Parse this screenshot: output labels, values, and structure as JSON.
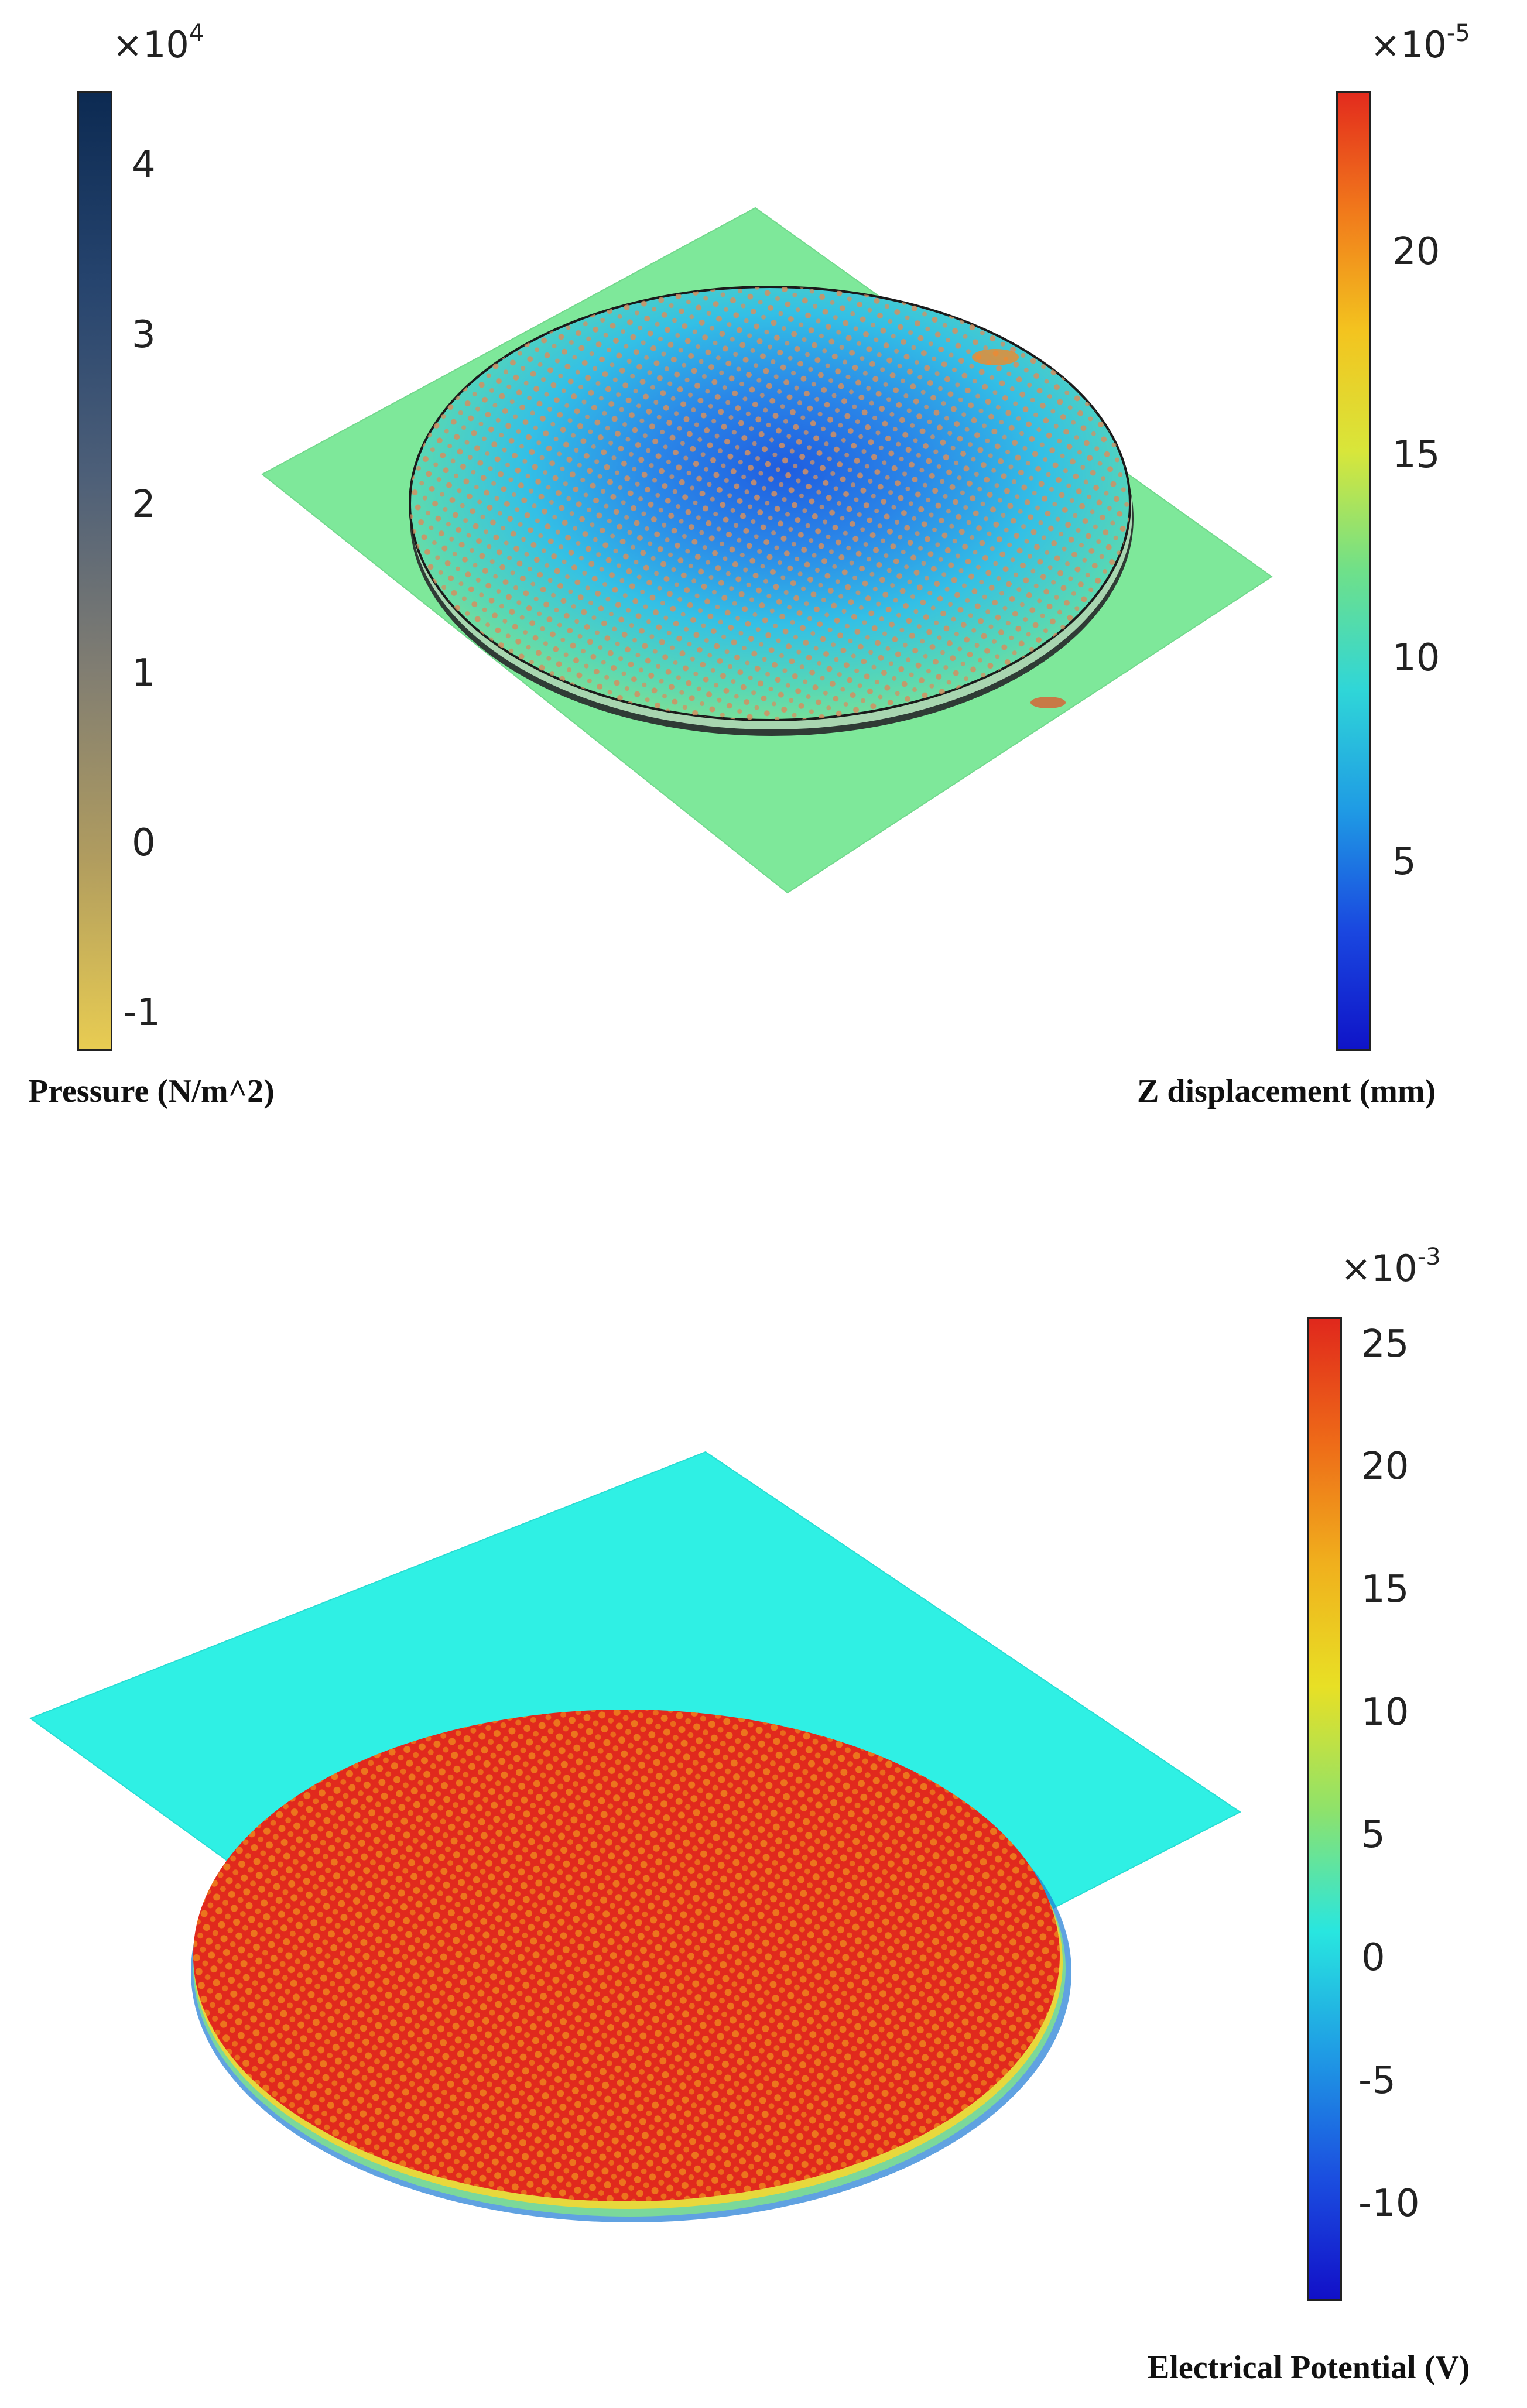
{
  "top": {
    "pressure_colorbar": {
      "multiplier_base": "×10",
      "multiplier_exp": "4",
      "ticks": [
        "4",
        "3",
        "2",
        "1",
        "0",
        "-1"
      ],
      "title": "Pressure (N/m^2)",
      "colors": [
        "#0c2a52",
        "#26446e",
        "#4d5f78",
        "#807d72",
        "#b09c5f",
        "#e8cc52"
      ]
    },
    "zdisp_colorbar": {
      "multiplier_base": "×10",
      "multiplier_exp": "-5",
      "ticks": [
        "20",
        "15",
        "10",
        "5"
      ],
      "title": "Z displacement (mm)",
      "colors": [
        "#e32b1d",
        "#f17a1b",
        "#f3c41f",
        "#d8e63a",
        "#6fe089",
        "#2fd6d8",
        "#1f9be4",
        "#1a48e0",
        "#0f14c8"
      ]
    }
  },
  "bottom": {
    "potential_colorbar": {
      "multiplier_base": "×10",
      "multiplier_exp": "-3",
      "ticks": [
        "25",
        "20",
        "15",
        "10",
        "5",
        "0",
        "-5",
        "-10"
      ],
      "title": "Electrical Potential (V)",
      "colors": [
        "#e0281c",
        "#ee6a18",
        "#f0b01d",
        "#e8e025",
        "#8fe26a",
        "#28e6e0",
        "#1f9be4",
        "#1b4fe0",
        "#1210c8"
      ]
    }
  }
}
